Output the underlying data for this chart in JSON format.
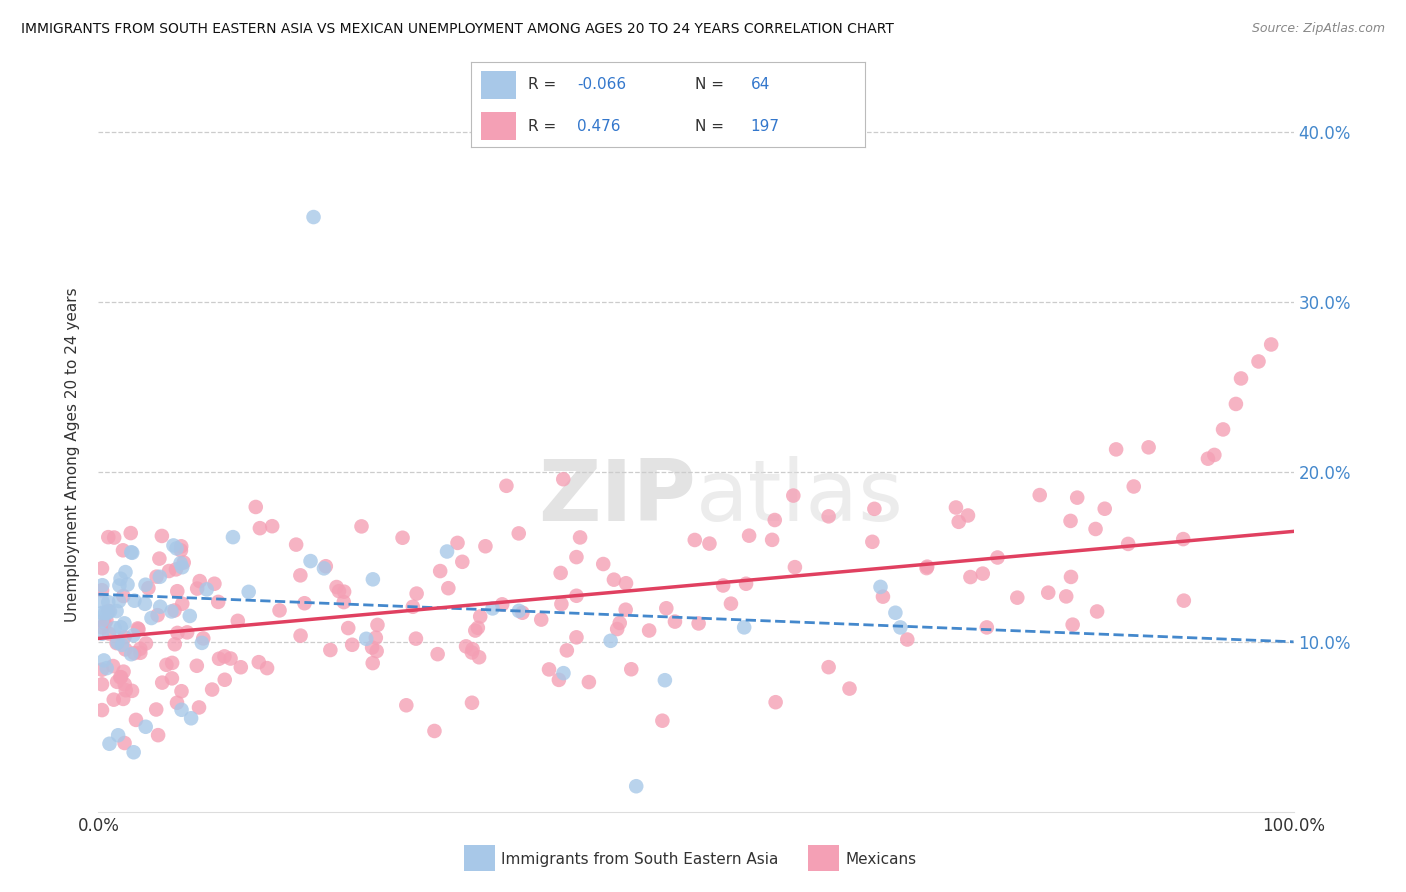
{
  "title": "IMMIGRANTS FROM SOUTH EASTERN ASIA VS MEXICAN UNEMPLOYMENT AMONG AGES 20 TO 24 YEARS CORRELATION CHART",
  "source": "Source: ZipAtlas.com",
  "ylabel": "Unemployment Among Ages 20 to 24 years",
  "xlim": [
    0,
    100
  ],
  "ylim": [
    0,
    42
  ],
  "blue_R": -0.066,
  "blue_N": 64,
  "pink_R": 0.476,
  "pink_N": 197,
  "blue_color": "#a8c8e8",
  "pink_color": "#f4a0b5",
  "blue_line_color": "#4488cc",
  "pink_line_color": "#e04060",
  "blue_trend_x0": 0,
  "blue_trend_x1": 100,
  "blue_trend_y0": 12.8,
  "blue_trend_y1": 10.0,
  "pink_trend_x0": 0,
  "pink_trend_x1": 100,
  "pink_trend_y0": 10.2,
  "pink_trend_y1": 16.5,
  "legend_label_blue": "Immigrants from South Eastern Asia",
  "legend_label_pink": "Mexicans",
  "watermark_zip": "ZIP",
  "watermark_atlas": "atlas",
  "background_color": "#ffffff",
  "grid_color": "#cccccc",
  "right_tick_color": "#4488cc",
  "ytick_positions": [
    10,
    20,
    30,
    40
  ],
  "ytick_labels": [
    "10.0%",
    "20.0%",
    "30.0%",
    "40.0%"
  ]
}
